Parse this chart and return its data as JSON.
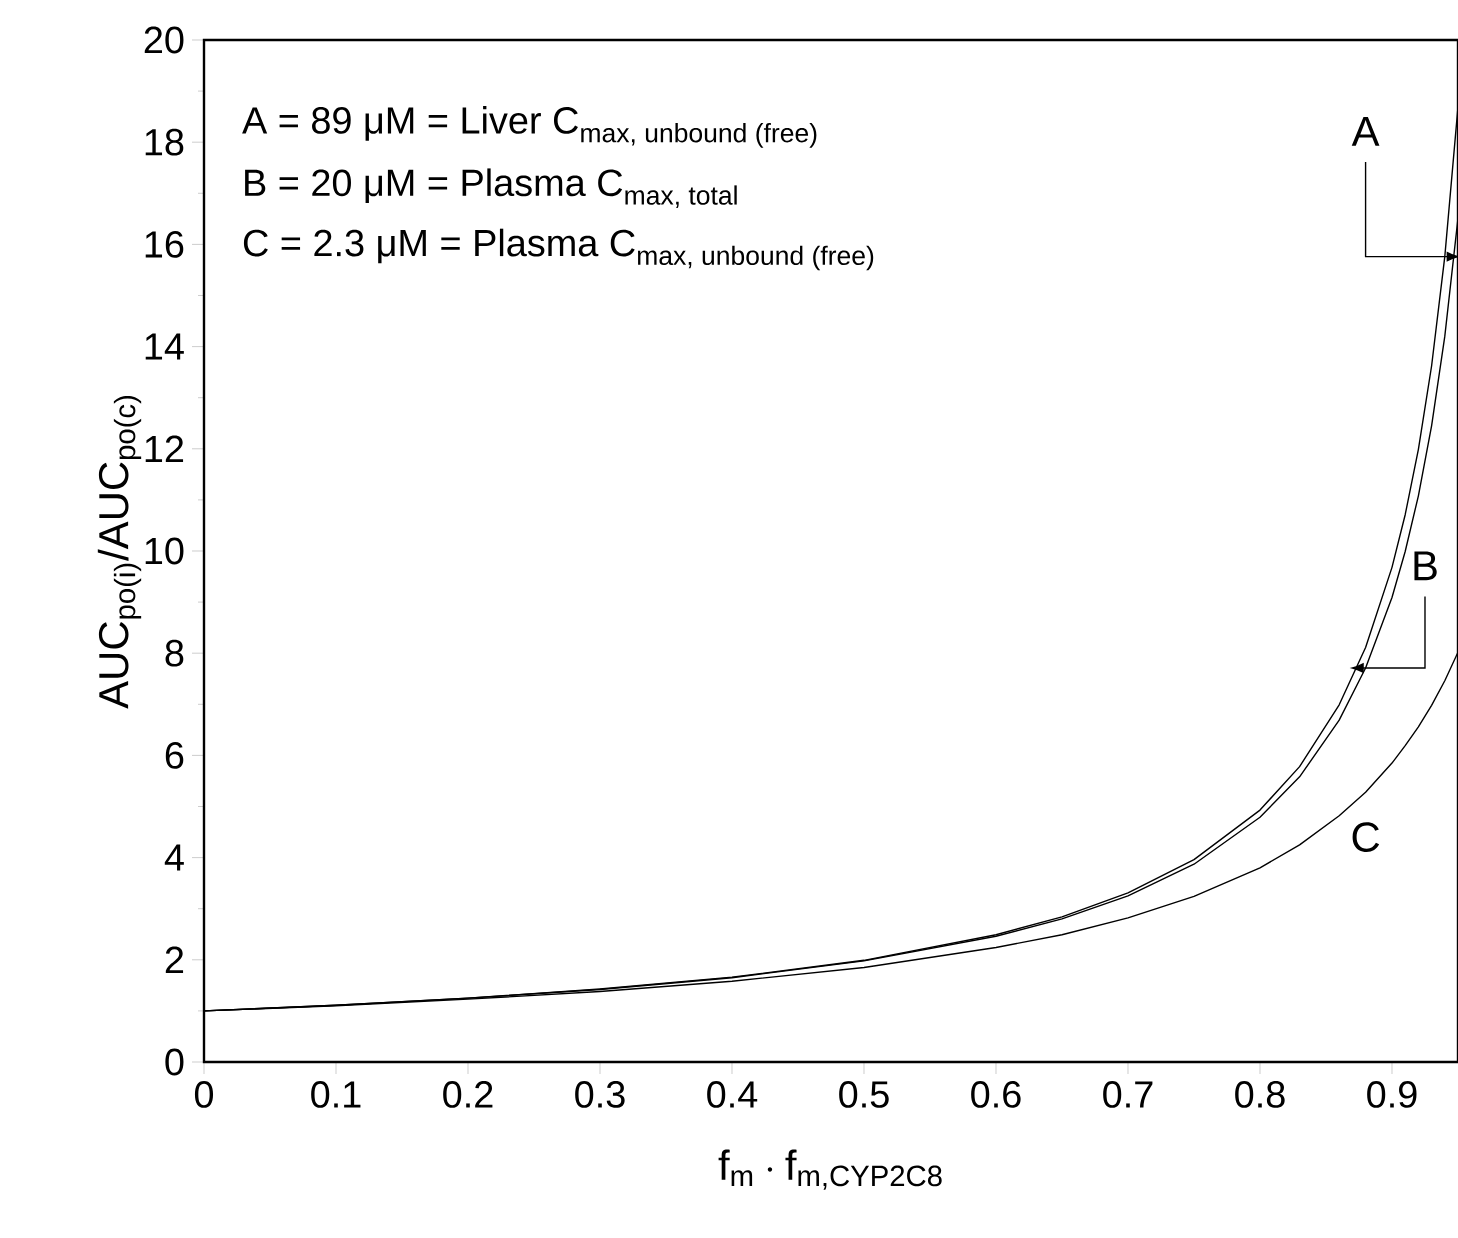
{
  "chart_data": {
    "type": "line",
    "xlabel": "\\text{f}_{\\text{m}}\\cdot\\text{f}_{\\text{m,CYP2C8}}",
    "ylabel": "\\text{AUC}_{\\text{po(i)}}\\text{/AUC}_{\\text{po(c)}}",
    "x": [
      0,
      0.1,
      0.2,
      0.3,
      0.4,
      0.5,
      0.6,
      0.65,
      0.7,
      0.75,
      0.8,
      0.83,
      0.86,
      0.88,
      0.9,
      0.91,
      0.92,
      0.93,
      0.94,
      0.95
    ],
    "series": [
      {
        "color": "#000000",
        "values": [
          1,
          1.11,
          1.25,
          1.43,
          1.66,
          1.99,
          2.49,
          2.84,
          3.31,
          3.96,
          4.93,
          5.78,
          6.99,
          8.11,
          9.68,
          10.71,
          11.99,
          13.62,
          15.76,
          18.69
        ]
      },
      {
        "color": "#000000",
        "values": [
          1,
          1.11,
          1.25,
          1.42,
          1.65,
          1.98,
          2.46,
          2.8,
          3.25,
          3.87,
          4.79,
          5.58,
          6.69,
          7.71,
          9.09,
          9.99,
          11.08,
          12.45,
          14.2,
          16.51
        ]
      },
      {
        "color": "#000000",
        "values": [
          1,
          1.1,
          1.23,
          1.38,
          1.58,
          1.85,
          2.24,
          2.49,
          2.82,
          3.24,
          3.8,
          4.25,
          4.82,
          5.28,
          5.85,
          6.19,
          6.56,
          6.98,
          7.46,
          8.02
        ]
      }
    ],
    "xlim": [
      0,
      0.95
    ],
    "ylim": [
      0,
      20
    ],
    "xticks": [
      0,
      0.1,
      0.2,
      0.3,
      0.4,
      0.5,
      0.6,
      0.7,
      0.8,
      0.9
    ],
    "yticks": [
      0,
      2,
      4,
      6,
      8,
      10,
      12,
      14,
      16,
      18,
      20
    ],
    "grid": false,
    "line_style": "solid",
    "annotations": [
      "\\text{A = 89 μM  = Liver C}_{\\text{max, unbound (free)}}",
      "\\text{B = 20 μM  = Plasma C}_{\\text{max, total}}",
      "\\text{C = 2.3 μM = Plasma C}_{\\text{max, unbound (free)}}",
      {
        "text": "A",
        "x": 0.94,
        "y": 15.76
      },
      {
        "text": "B",
        "x": 0.88,
        "y": 7.71
      },
      {
        "text": "C",
        "x": 0.9,
        "y": 5.85
      }
    ]
  }
}
